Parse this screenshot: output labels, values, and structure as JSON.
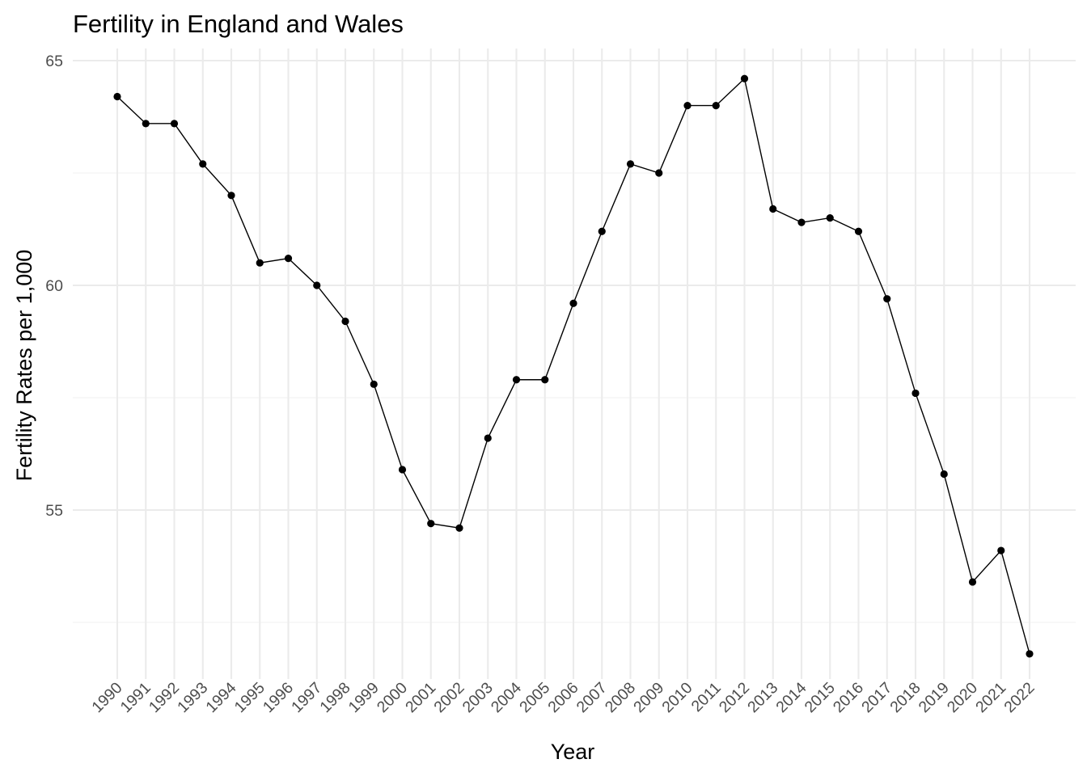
{
  "chart_data": {
    "type": "line",
    "title": "Fertility in England and Wales",
    "xlabel": "Year",
    "ylabel": "Fertility Rates per 1,000",
    "categories": [
      "1990",
      "1991",
      "1992",
      "1993",
      "1994",
      "1995",
      "1996",
      "1997",
      "1998",
      "1999",
      "2000",
      "2001",
      "2002",
      "2003",
      "2004",
      "2005",
      "2006",
      "2007",
      "2008",
      "2009",
      "2010",
      "2011",
      "2012",
      "2013",
      "2014",
      "2015",
      "2016",
      "2017",
      "2018",
      "2019",
      "2020",
      "2021",
      "2022"
    ],
    "values": [
      64.2,
      63.6,
      63.6,
      62.7,
      62.0,
      60.5,
      60.6,
      60.0,
      59.2,
      57.8,
      55.9,
      54.7,
      54.6,
      56.6,
      57.9,
      57.9,
      59.6,
      61.2,
      62.7,
      62.5,
      64.0,
      64.0,
      64.6,
      61.7,
      61.4,
      61.5,
      61.2,
      59.7,
      57.6,
      55.8,
      53.4,
      54.1,
      51.8
    ],
    "yticks": [
      "55",
      "60",
      "65"
    ],
    "ylim": [
      51.3,
      65.0
    ],
    "grid": true,
    "legend": "none",
    "color": "#000000"
  }
}
